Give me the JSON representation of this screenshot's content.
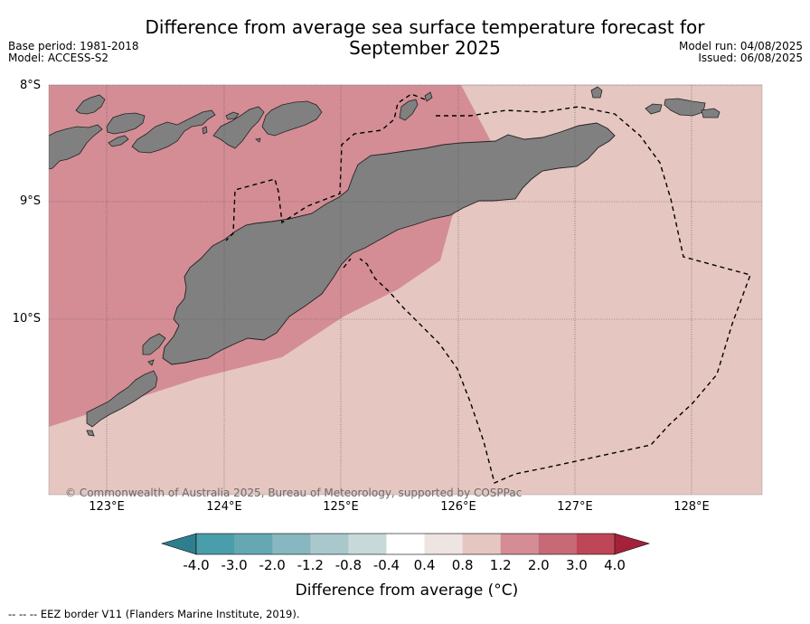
{
  "title_line1": "Difference from average sea surface temperature forecast for",
  "title_line2": "September 2025",
  "base_period": "Base period: 1981-2018",
  "model": "Model: ACCESS-S2",
  "model_run": "Model run: 04/08/2025",
  "issued": "Issued: 06/08/2025",
  "lat_labels": [
    "8°S",
    "9°S",
    "10°S"
  ],
  "lon_labels": [
    "123°E",
    "124°E",
    "125°E",
    "126°E",
    "127°E",
    "128°E"
  ],
  "copyright": "© Commonwealth of Australia 2025, Bureau of Meteorology, supported by COSPPac",
  "colorbar": {
    "ticks": [
      "-4.0",
      "-3.0",
      "-2.0",
      "-1.2",
      "-0.8",
      "-0.4",
      "0.4",
      "0.8",
      "1.2",
      "2.0",
      "3.0",
      "4.0"
    ],
    "colors": [
      "#4a9daa",
      "#65a8b4",
      "#87b7c1",
      "#a8c8cc",
      "#c8d9da",
      "#ffffff",
      "#eee4e1",
      "#e6c6c1",
      "#d48d95",
      "#c86a76",
      "#bf4656"
    ],
    "under_color": "#2e7f8d",
    "over_color": "#a4213a",
    "title": "Difference from average (°C)"
  },
  "map": {
    "land_color": "#808080",
    "zone_colors": {
      "range_0.8_1.2": "#e6c6c1",
      "range_1.2_2.0": "#d48d95"
    }
  },
  "footnote": "--  --  -- EEZ border V11 (Flanders Marine Institute, 2019)."
}
